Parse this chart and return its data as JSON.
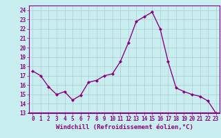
{
  "x": [
    0,
    1,
    2,
    3,
    4,
    5,
    6,
    7,
    8,
    9,
    10,
    11,
    12,
    13,
    14,
    15,
    16,
    17,
    18,
    19,
    20,
    21,
    22,
    23
  ],
  "y": [
    17.5,
    17.0,
    15.8,
    15.0,
    15.3,
    14.4,
    14.9,
    16.3,
    16.5,
    17.0,
    17.2,
    18.5,
    20.5,
    22.8,
    23.3,
    23.8,
    22.0,
    18.5,
    15.7,
    15.3,
    15.0,
    14.8,
    14.3,
    13.0
  ],
  "line_color": "#8B008B",
  "marker": "D",
  "marker_size": 2.0,
  "bg_color": "#c8eef0",
  "grid_color": "#b0ccd0",
  "xlabel": "Windchill (Refroidissement éolien,°C)",
  "xlim": [
    -0.5,
    23.5
  ],
  "ylim": [
    13,
    24.5
  ],
  "yticks": [
    13,
    14,
    15,
    16,
    17,
    18,
    19,
    20,
    21,
    22,
    23,
    24
  ],
  "xticks": [
    0,
    1,
    2,
    3,
    4,
    5,
    6,
    7,
    8,
    9,
    10,
    11,
    12,
    13,
    14,
    15,
    16,
    17,
    18,
    19,
    20,
    21,
    22,
    23
  ],
  "tick_label_size": 5.5,
  "xlabel_size": 6.5,
  "line_width": 1.0,
  "spine_color": "#8B008B",
  "axis_bottom_color": "#8B008B"
}
